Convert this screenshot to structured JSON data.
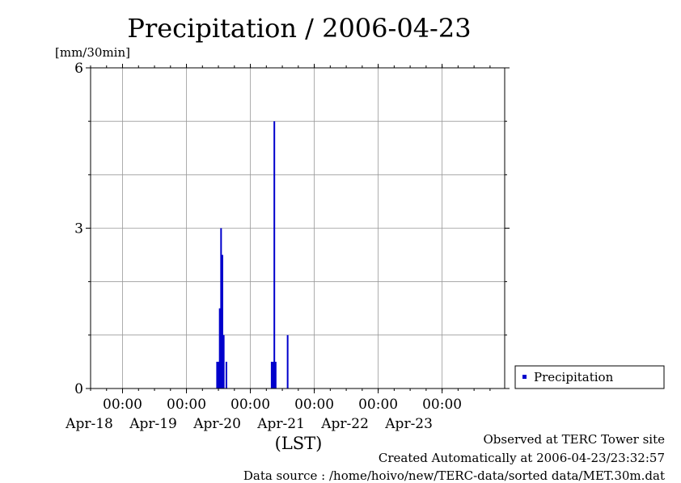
{
  "chart_data": {
    "type": "bar",
    "title": "Precipitation / 2006-04-23",
    "ylabel": "[mm/30min]",
    "xlabel": "(LST)",
    "ylim": [
      0,
      6
    ],
    "yticks": [
      "0",
      "3",
      "6"
    ],
    "xlim": [
      "2006-04-17 12:00",
      "2006-04-23 23:30"
    ],
    "x_major_ticks": [
      {
        "time": "2006-04-18 00:00",
        "time_label": "00:00",
        "date_label": "Apr-18"
      },
      {
        "time": "2006-04-19 00:00",
        "time_label": "00:00",
        "date_label": "Apr-19"
      },
      {
        "time": "2006-04-20 00:00",
        "time_label": "00:00",
        "date_label": "Apr-20"
      },
      {
        "time": "2006-04-21 00:00",
        "time_label": "00:00",
        "date_label": "Apr-21"
      },
      {
        "time": "2006-04-22 00:00",
        "time_label": "00:00",
        "date_label": "Apr-22"
      },
      {
        "time": "2006-04-23 00:00",
        "time_label": "00:00",
        "date_label": "Apr-23"
      }
    ],
    "grid": true,
    "series": [
      {
        "name": "Precipitation",
        "color": "#0000cc",
        "points": [
          {
            "t": "2006-04-19 11:30",
            "v": 0.5
          },
          {
            "t": "2006-04-19 12:00",
            "v": 0.5
          },
          {
            "t": "2006-04-19 12:30",
            "v": 1.5
          },
          {
            "t": "2006-04-19 13:00",
            "v": 3.0
          },
          {
            "t": "2006-04-19 13:30",
            "v": 2.5
          },
          {
            "t": "2006-04-19 14:00",
            "v": 1.0
          },
          {
            "t": "2006-04-19 15:00",
            "v": 0.5
          },
          {
            "t": "2006-04-20 08:00",
            "v": 0.5
          },
          {
            "t": "2006-04-20 08:30",
            "v": 0.5
          },
          {
            "t": "2006-04-20 09:00",
            "v": 5.0
          },
          {
            "t": "2006-04-20 09:30",
            "v": 0.5
          },
          {
            "t": "2006-04-20 14:00",
            "v": 1.0
          }
        ]
      }
    ],
    "legend": "right"
  },
  "footer": {
    "observed": "Observed at TERC Tower site",
    "created": "Created Automatically at 2006-04-23/23:32:57",
    "source": "Data source : /home/hoivo/new/TERC-data/sorted  data/MET.30m.dat"
  }
}
